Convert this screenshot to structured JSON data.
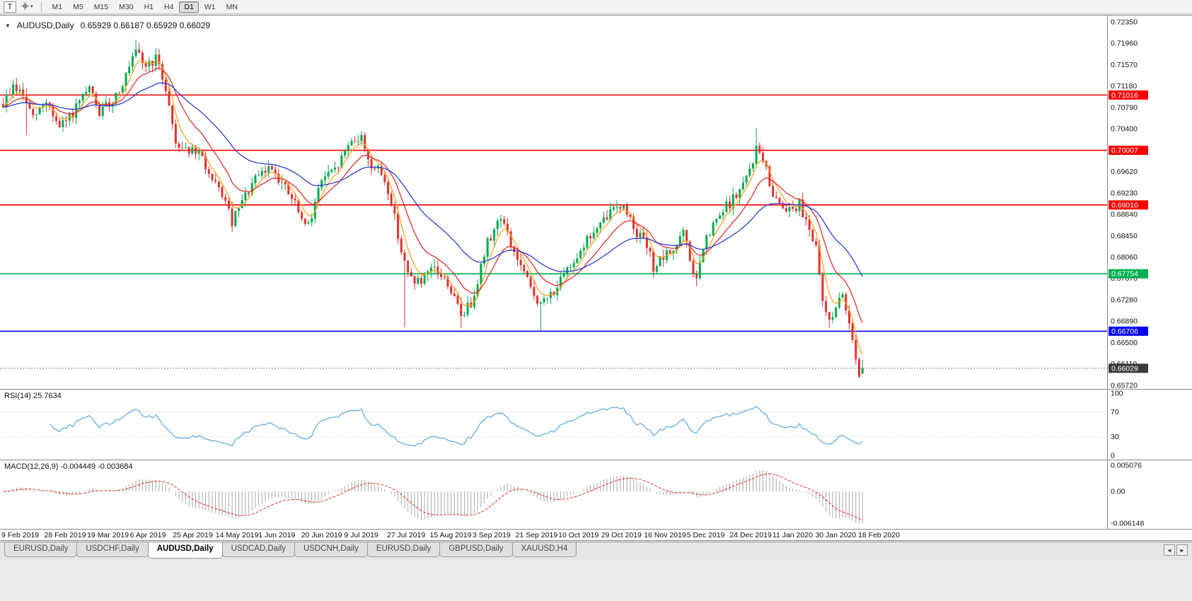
{
  "toolbar": {
    "tool_button_label": "T",
    "timeframes": [
      "M1",
      "M5",
      "M15",
      "M30",
      "H1",
      "H4",
      "D1",
      "W1",
      "MN"
    ],
    "active_timeframe": "D1"
  },
  "chart": {
    "symbol_title": "AUDUSD,Daily",
    "ohlc_text": "0.65929 0.66187 0.65929 0.66029",
    "collapse_glyph": "▼",
    "price_axis_ticks": [
      "0.72350",
      "0.71960",
      "0.71570",
      "0.71180",
      "0.70790",
      "0.70400",
      "0.70010",
      "0.69620",
      "0.69230",
      "0.68840",
      "0.68450",
      "0.68060",
      "0.67670",
      "0.67280",
      "0.66890",
      "0.66500",
      "0.66110",
      "0.65720"
    ],
    "date_axis_ticks": [
      "9 Feb 2019",
      "28 Feb 2019",
      "19 Mar 2019",
      "6 Apr 2019",
      "25 Apr 2019",
      "14 May 2019",
      "1 Jun 2019",
      "20 Jun 2019",
      "9 Jul 2019",
      "27 Jul 2019",
      "15 Aug 2019",
      "3 Sep 2019",
      "21 Sep 2019",
      "10 Oct 2019",
      "29 Oct 2019",
      "16 Nov 2019",
      "5 Dec 2019",
      "24 Dec 2019",
      "11 Jan 2020",
      "30 Jan 2020",
      "18 Feb 2020"
    ],
    "levels": [
      {
        "label": "0.71016",
        "value": 0.71016,
        "color": "#F60000",
        "kind": "resistance"
      },
      {
        "label": "0.70007",
        "value": 0.70007,
        "color": "#F60000",
        "kind": "resistance"
      },
      {
        "label": "0.69010",
        "value": 0.6901,
        "color": "#F60000",
        "kind": "resistance"
      },
      {
        "label": "0.67754",
        "value": 0.67754,
        "color": "#00B050",
        "kind": "support"
      },
      {
        "label": "0.66706",
        "value": 0.66706,
        "color": "#0000EE",
        "kind": "support"
      }
    ],
    "current_price": {
      "label": "0.66029",
      "value": 0.66029,
      "bg": "#3A3A3A"
    }
  },
  "rsi_panel": {
    "label": "RSI(14) 25.7634",
    "period": 14,
    "last_value": 25.7634,
    "axis_ticks": [
      {
        "label": "100",
        "value": 100
      },
      {
        "label": "70",
        "value": 70
      },
      {
        "label": "30",
        "value": 30
      },
      {
        "label": "0",
        "value": 0
      }
    ],
    "levels": [
      70,
      30
    ],
    "line_color": "#5AA7DC"
  },
  "macd_panel": {
    "label": "MACD(12,26,9) -0.004449 -0.003684",
    "fast": 12,
    "slow": 26,
    "signal": 9,
    "last_values": [
      -0.004449,
      -0.003684
    ],
    "axis_ticks": [
      {
        "label": "0.005076",
        "value": 0.005076
      },
      {
        "label": "0.00",
        "value": 0
      },
      {
        "label": "-0.006148",
        "value": -0.006148
      }
    ],
    "axis_max": 0.005076,
    "axis_min": -0.006148,
    "histogram_color": "#A8A8A8",
    "signal_color": "#E03030"
  },
  "tabs": {
    "items": [
      "EURUSD,Daily",
      "USDCHF,Daily",
      "AUDUSD,Daily",
      "USDCAD,Daily",
      "USDCNH,Daily",
      "EURUSD,Daily",
      "GBPUSD,Daily",
      "XAUUSD,H4"
    ],
    "active_index": 2,
    "scroll_left_glyph": "◄",
    "scroll_right_glyph": "►"
  },
  "colors": {
    "up": "#00A94F",
    "down": "#E03131",
    "axis_text": "#111111",
    "panel_border": "#8C8C8C"
  },
  "chart_data": {
    "type": "candlestick",
    "symbol": "AUDUSD",
    "timeframe": "Daily",
    "bars": 260,
    "visible_price_range": [
      0.6572,
      0.7235
    ],
    "last_bar": {
      "open": 0.65929,
      "high": 0.66187,
      "low": 0.65929,
      "close": 0.66029
    },
    "price_path": [
      [
        0,
        0.7085
      ],
      [
        3,
        0.7118
      ],
      [
        6,
        0.7102
      ],
      [
        9,
        0.7058
      ],
      [
        13,
        0.7092
      ],
      [
        17,
        0.704
      ],
      [
        21,
        0.7068
      ],
      [
        26,
        0.7112
      ],
      [
        29,
        0.7068
      ],
      [
        33,
        0.7092
      ],
      [
        37,
        0.7135
      ],
      [
        40,
        0.7178
      ],
      [
        43,
        0.7155
      ],
      [
        46,
        0.7168
      ],
      [
        49,
        0.7115
      ],
      [
        52,
        0.7015
      ],
      [
        56,
        0.7002
      ],
      [
        60,
        0.6988
      ],
      [
        63,
        0.694
      ],
      [
        66,
        0.6922
      ],
      [
        69,
        0.6868
      ],
      [
        72,
        0.6905
      ],
      [
        75,
        0.6938
      ],
      [
        78,
        0.6958
      ],
      [
        81,
        0.6972
      ],
      [
        85,
        0.693
      ],
      [
        88,
        0.6902
      ],
      [
        91,
        0.6858
      ],
      [
        93,
        0.6885
      ],
      [
        96,
        0.6948
      ],
      [
        100,
        0.6962
      ],
      [
        103,
        0.6998
      ],
      [
        105,
        0.7022
      ],
      [
        108,
        0.7022
      ],
      [
        111,
        0.6972
      ],
      [
        114,
        0.6958
      ],
      [
        116,
        0.6928
      ],
      [
        118,
        0.6878
      ],
      [
        120,
        0.6818
      ],
      [
        122,
        0.6772
      ],
      [
        126,
        0.6758
      ],
      [
        130,
        0.6785
      ],
      [
        134,
        0.6758
      ],
      [
        138,
        0.67
      ],
      [
        141,
        0.6722
      ],
      [
        146,
        0.6832
      ],
      [
        150,
        0.6882
      ],
      [
        153,
        0.6828
      ],
      [
        156,
        0.6788
      ],
      [
        159,
        0.6748
      ],
      [
        162,
        0.6718
      ],
      [
        165,
        0.6738
      ],
      [
        169,
        0.6768
      ],
      [
        172,
        0.6802
      ],
      [
        176,
        0.6838
      ],
      [
        180,
        0.6862
      ],
      [
        183,
        0.6888
      ],
      [
        185,
        0.6905
      ],
      [
        188,
        0.6888
      ],
      [
        191,
        0.6852
      ],
      [
        194,
        0.6825
      ],
      [
        196,
        0.6788
      ],
      [
        199,
        0.6802
      ],
      [
        203,
        0.6828
      ],
      [
        205,
        0.6852
      ],
      [
        207,
        0.6798
      ],
      [
        209,
        0.6762
      ],
      [
        211,
        0.6822
      ],
      [
        214,
        0.6862
      ],
      [
        218,
        0.6898
      ],
      [
        221,
        0.6918
      ],
      [
        224,
        0.6948
      ],
      [
        227,
        0.7002
      ],
      [
        229,
        0.6988
      ],
      [
        231,
        0.6935
      ],
      [
        234,
        0.6905
      ],
      [
        237,
        0.6895
      ],
      [
        240,
        0.6902
      ],
      [
        243,
        0.6862
      ],
      [
        245,
        0.6818
      ],
      [
        247,
        0.6722
      ],
      [
        249,
        0.6692
      ],
      [
        251,
        0.6716
      ],
      [
        253,
        0.6732
      ],
      [
        255,
        0.6692
      ],
      [
        256,
        0.6662
      ],
      [
        257,
        0.6622
      ],
      [
        258,
        0.6592
      ],
      [
        259,
        0.66029
      ]
    ],
    "spikes": [
      {
        "i": 7,
        "low": 0.7028
      },
      {
        "i": 40,
        "high": 0.7203
      },
      {
        "i": 121,
        "low": 0.6678
      },
      {
        "i": 138,
        "low": 0.6676
      },
      {
        "i": 162,
        "low": 0.6671
      },
      {
        "i": 209,
        "low": 0.6752
      },
      {
        "i": 227,
        "high": 0.7041
      },
      {
        "i": 249,
        "low": 0.6678
      },
      {
        "i": 258,
        "low": 0.6585
      }
    ],
    "moving_averages": [
      {
        "period": 5,
        "type": "EMA",
        "color": "#F5A623"
      },
      {
        "period": 13,
        "type": "EMA",
        "color": "#E03131"
      },
      {
        "period": 34,
        "type": "EMA",
        "color": "#2B3FD6"
      }
    ],
    "indicators": [
      {
        "name": "RSI",
        "period": 14,
        "last": 25.7634
      },
      {
        "name": "MACD",
        "params": [
          12,
          26,
          9
        ],
        "last": [
          -0.004449,
          -0.003684
        ]
      }
    ]
  }
}
